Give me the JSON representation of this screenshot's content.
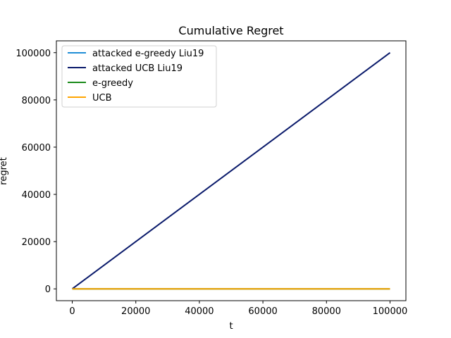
{
  "chart_data": {
    "type": "line",
    "title": "Cumulative Regret",
    "xlabel": "t",
    "ylabel": "regret",
    "xlim": [
      -5000,
      105000
    ],
    "ylim": [
      -5000,
      105000
    ],
    "xticks": [
      0,
      20000,
      40000,
      60000,
      80000,
      100000
    ],
    "yticks": [
      0,
      20000,
      40000,
      60000,
      80000,
      100000
    ],
    "grid": false,
    "legend_position": "top-left",
    "series": [
      {
        "name": "attacked e-greedy Liu19",
        "color": "#1f8dd6",
        "x": [
          0,
          100000
        ],
        "y": [
          0,
          0
        ]
      },
      {
        "name": "attacked UCB Liu19",
        "color": "#0a1a6b",
        "x": [
          0,
          100000
        ],
        "y": [
          0,
          100000
        ]
      },
      {
        "name": "e-greedy",
        "color": "#1a8a1a",
        "x": [
          0,
          100000
        ],
        "y": [
          0,
          0
        ]
      },
      {
        "name": "UCB",
        "color": "#ffa500",
        "x": [
          0,
          100000
        ],
        "y": [
          0,
          0
        ]
      }
    ]
  }
}
